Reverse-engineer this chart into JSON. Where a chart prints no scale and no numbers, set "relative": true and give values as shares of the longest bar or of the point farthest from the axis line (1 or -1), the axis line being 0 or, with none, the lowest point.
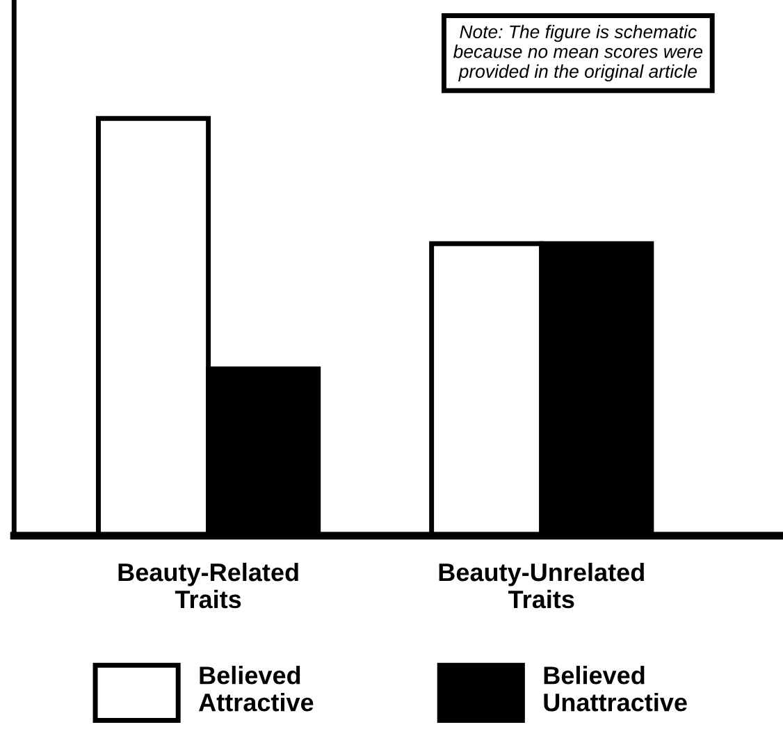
{
  "chart_data": {
    "type": "bar",
    "relative": true,
    "categories": [
      "Beauty-Related\nTraits",
      "Beauty-Unrelated\nTraits"
    ],
    "series": [
      {
        "name": "Believed\nAttractive",
        "color": "#ffffff",
        "values": [
          1,
          0.7
        ]
      },
      {
        "name": "Believed\nUnattractive",
        "color": "#000000",
        "values": [
          0.4,
          0.7
        ]
      }
    ],
    "annotations": [
      "Note: The figure is schematic\nbecause no mean scores were\nprovided in the original article"
    ],
    "legend": "bottom",
    "grid": false
  }
}
